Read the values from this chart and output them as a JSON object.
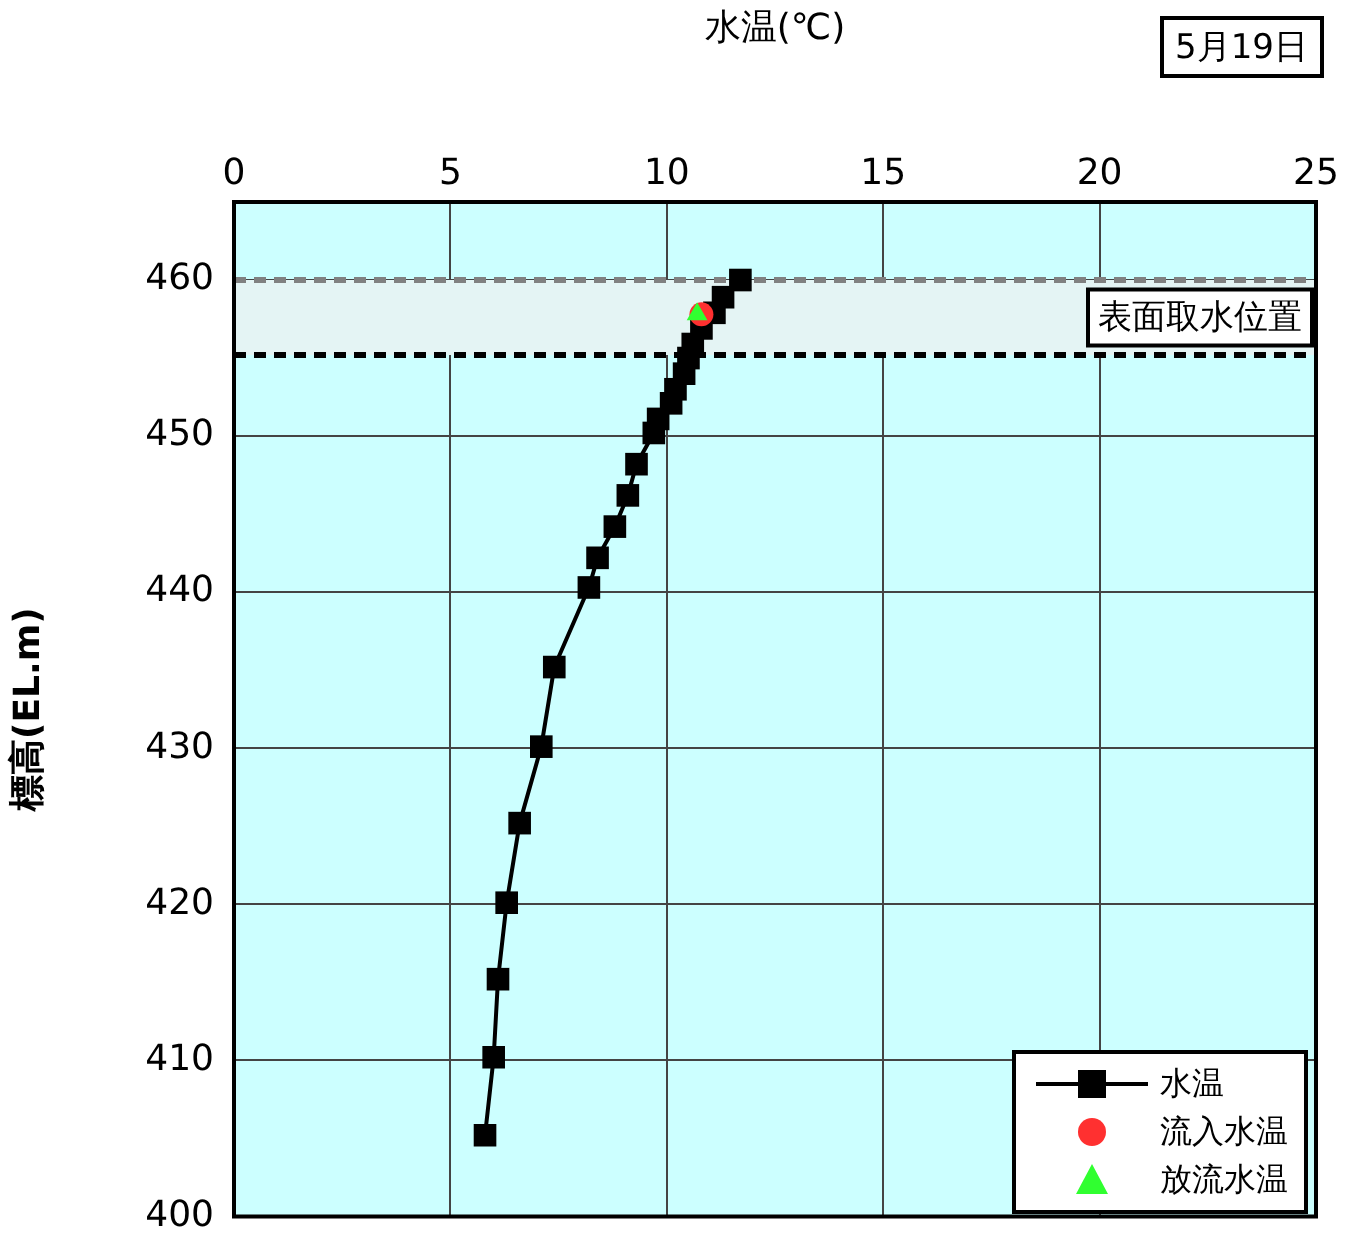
{
  "chart_data": {
    "type": "line",
    "title": "5月19日",
    "xlabel": "水温(℃)",
    "ylabel": "標高(EL.m)",
    "xlim": [
      0,
      25
    ],
    "xticks": [
      0,
      5,
      10,
      15,
      20,
      25
    ],
    "ylim": [
      400,
      465
    ],
    "yticks": [
      400,
      410,
      420,
      430,
      440,
      450,
      460
    ],
    "grid": true,
    "legend": "bottom right",
    "line_style": "solid",
    "bands": [
      {
        "axis": "y",
        "from": 455.2,
        "to": 460,
        "label": "表面取水位置",
        "color": "#e4f4f4"
      }
    ],
    "ref_lines": [
      {
        "axis": "y",
        "value": 460,
        "color": "#808080",
        "line_style": "dashed"
      },
      {
        "axis": "y",
        "value": 455.2,
        "color": "#000000",
        "line_style": "dashed"
      }
    ],
    "series": [
      {
        "name": "水温",
        "type": "line",
        "marker": "square",
        "color": "#000000",
        "x": [
          5.8,
          6.0,
          6.1,
          6.3,
          6.6,
          7.1,
          7.4,
          8.2,
          8.4,
          8.8,
          9.1,
          9.3,
          9.7,
          9.8,
          10.1,
          10.2,
          10.4,
          10.5,
          10.6,
          10.8,
          11.1,
          11.3,
          11.7
        ],
        "values": [
          405.2,
          410.2,
          415.2,
          420.1,
          425.2,
          430.1,
          435.2,
          440.3,
          442.2,
          444.2,
          446.2,
          448.2,
          450.2,
          451.1,
          452.1,
          453.0,
          454.0,
          455.0,
          455.9,
          456.9,
          457.9,
          458.9,
          460.0
        ]
      },
      {
        "name": "流入水温",
        "type": "scatter",
        "marker": "circle",
        "color": "#ff3030",
        "x": [
          10.8
        ],
        "values": [
          457.8
        ]
      },
      {
        "name": "放流水温",
        "type": "scatter",
        "marker": "triangle",
        "color": "#30ff30",
        "x": [
          10.7
        ],
        "values": [
          457.8
        ]
      }
    ]
  }
}
